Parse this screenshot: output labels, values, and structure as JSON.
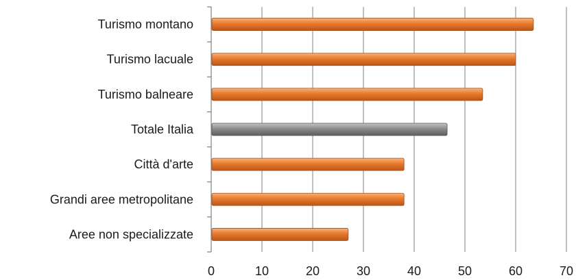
{
  "chart_data": {
    "type": "bar",
    "orientation": "horizontal",
    "categories": [
      "Turismo montano",
      "Turismo lacuale",
      "Turismo balneare",
      "Totale Italia",
      "Città d'arte",
      "Grandi aree metropolitane",
      "Aree non specializzate"
    ],
    "values": [
      63.5,
      60,
      53.5,
      46.5,
      38,
      38,
      27
    ],
    "bar_colors": [
      "#e8792a",
      "#e8792a",
      "#e8792a",
      "#8a8a8a",
      "#e8792a",
      "#e8792a",
      "#e8792a"
    ],
    "title": "",
    "xlabel": "",
    "ylabel": "",
    "xlim": [
      0,
      70
    ],
    "xticks": [
      0,
      10,
      20,
      30,
      40,
      50,
      60,
      70
    ],
    "grid": "vertical",
    "legend": "none"
  }
}
